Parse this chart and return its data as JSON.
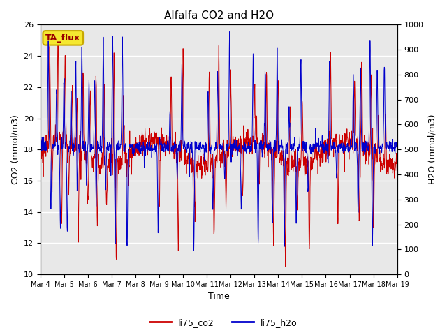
{
  "title": "Alfalfa CO2 and H2O",
  "xlabel": "Time",
  "ylabel_left": "CO2 (mmol/m3)",
  "ylabel_right": "H2O (mmol/m3)",
  "ylim_left": [
    10,
    26
  ],
  "ylim_right": [
    0,
    1000
  ],
  "yticks_left": [
    10,
    12,
    14,
    16,
    18,
    20,
    22,
    24,
    26
  ],
  "yticks_right": [
    0,
    100,
    200,
    300,
    400,
    500,
    600,
    700,
    800,
    900,
    1000
  ],
  "annotation_text": "TA_flux",
  "legend_co2": "li75_co2",
  "legend_h2o": "li75_h2o",
  "color_co2": "#cc0000",
  "color_h2o": "#0000cc",
  "bg_color": "#e8e8e8",
  "xtick_labels": [
    "Mar 4",
    "Mar 5",
    "Mar 6",
    "Mar 7",
    "Mar 8",
    "Mar 9",
    "Mar 10",
    "Mar 11",
    "Mar 12",
    "Mar 13",
    "Mar 14",
    "Mar 15",
    "Mar 16",
    "Mar 17",
    "Mar 18",
    "Mar 19"
  ],
  "n_points": 1500,
  "total_days": 15,
  "spike_up_days_co2": [
    0.4,
    0.75,
    1.05,
    1.35,
    1.55,
    1.8,
    2.1,
    2.35,
    2.7,
    3.1,
    3.5,
    5.5,
    6.0,
    7.1,
    7.5,
    8.0,
    9.0,
    9.5,
    10.0,
    10.5,
    11.0,
    12.2,
    13.2,
    13.5,
    13.9,
    14.2,
    14.5
  ],
  "spike_down_days_co2": [
    0.5,
    0.9,
    1.2,
    1.6,
    2.0,
    2.4,
    2.8,
    3.2,
    3.7,
    5.0,
    5.8,
    6.5,
    7.3,
    7.8,
    8.5,
    9.2,
    9.8,
    10.3,
    10.8,
    11.3,
    12.5,
    13.4,
    14.0
  ],
  "spike_up_days_h2o": [
    0.35,
    0.7,
    1.0,
    1.3,
    1.5,
    1.75,
    2.05,
    2.3,
    2.65,
    3.05,
    3.45,
    5.45,
    5.95,
    7.05,
    7.45,
    7.95,
    8.95,
    9.45,
    9.95,
    10.45,
    10.95,
    12.15,
    13.15,
    13.45,
    13.85,
    14.15,
    14.45
  ],
  "spike_down_days_h2o": [
    0.45,
    0.85,
    1.15,
    1.55,
    1.95,
    2.35,
    2.75,
    3.15,
    3.65,
    4.95,
    5.75,
    6.45,
    7.25,
    7.75,
    8.45,
    9.15,
    9.75,
    10.25,
    10.75,
    11.25,
    12.45,
    13.35,
    13.95
  ]
}
